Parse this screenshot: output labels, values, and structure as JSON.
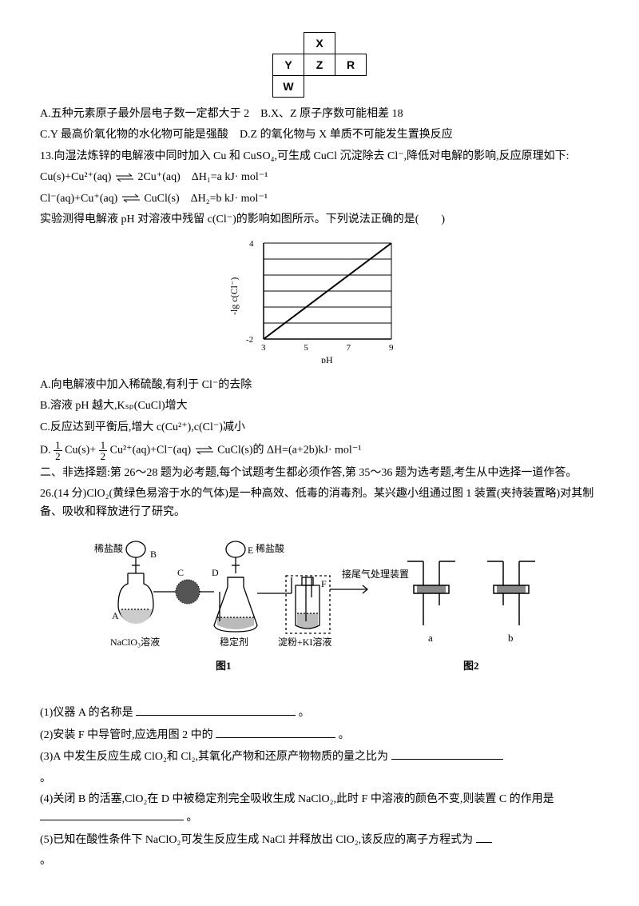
{
  "periodic": {
    "cells": {
      "X": "X",
      "Y": "Y",
      "Z": "Z",
      "R": "R",
      "W": "W"
    }
  },
  "q12": {
    "A": "A.五种元素原子最外层电子数一定都大于 2",
    "B": "B.X、Z 原子序数可能相差 18",
    "C": "C.Y 最高价氧化物的水化物可能是强酸",
    "D": "D.Z 的氧化物与 X 单质不可能发生置换反应"
  },
  "q13": {
    "intro": "13.向湿法炼锌的电解液中同时加入 Cu 和 CuSO₄,可生成 CuCl 沉淀除去 Cl⁻,降低对电解的影响,反应原理如下:",
    "eq1_left": "Cu(s)+Cu²⁺(aq)",
    "eq1_right": "2Cu⁺(aq)",
    "eq1_dH": "ΔH₁=a kJ· mol⁻¹",
    "eq2_left": "Cl⁻(aq)+Cu⁺(aq)",
    "eq2_right": "CuCl(s)",
    "eq2_dH": "ΔH₂=b kJ· mol⁻¹",
    "note": "实验测得电解液 pH 对溶液中残留 c(Cl⁻)的影响如图所示。下列说法正确的是(　　)",
    "A": "A.向电解液中加入稀硫酸,有利于 Cl⁻的去除",
    "B": "B.溶液 pH 越大,Kₛₚ(CuCl)增大",
    "C": "C.反应达到平衡后,增大 c(Cu²⁺),c(Cl⁻)减小",
    "D_prefix": "D.",
    "D_mid1": "Cu(s)+",
    "D_mid2": "Cu²⁺(aq)+Cl⁻(aq)",
    "D_right": "CuCl(s)的 ΔH=(a+2b)kJ· mol⁻¹"
  },
  "graph": {
    "xlabel": "pH",
    "ylabel": "-lg c(Cl⁻)",
    "xlim": [
      3,
      9
    ],
    "ylim": [
      -2,
      4
    ],
    "xticks": [
      3,
      5,
      7,
      9
    ],
    "yticks": [
      -2,
      4
    ],
    "grid_ylines": [
      -2,
      -1,
      0,
      1,
      2,
      3,
      4
    ],
    "line": {
      "x1": 3,
      "y1": -2,
      "x2": 9,
      "y2": 4
    },
    "stroke": "#000000",
    "grid": "#000000",
    "bg": "#ffffff"
  },
  "section2": "二、非选择题:第 26～28 题为必考题,每个试题考生都必须作答,第 35～36 题为选考题,考生从中选择一道作答。",
  "q26": {
    "intro": "26.(14 分)ClO₂(黄绿色易溶于水的气体)是一种高效、低毒的消毒剂。某兴趣小组通过图 1 装置(夹持装置略)对其制备、吸收和释放进行了研究。",
    "labels": {
      "dilute_hcl1": "稀盐酸",
      "dilute_hcl2": "稀盐酸",
      "tail_gas": "接尾气处理装置",
      "A": "A",
      "B": "B",
      "C": "C",
      "D": "D",
      "E": "E",
      "F": "F",
      "naclo3": "NaClO₃溶液",
      "stabilizer": "稳定剂",
      "starch_ki": "淀粉+KI溶液",
      "fig1": "图1",
      "fig2": "图2",
      "a": "a",
      "b": "b"
    },
    "sub1": "(1)仪器 A 的名称是",
    "sub1_end": "。",
    "sub2": "(2)安装 F 中导管时,应选用图 2 中的",
    "sub2_end": "。",
    "sub3": "(3)A 中发生反应生成 ClO₂和 Cl₂,其氧化产物和还原产物物质的量之比为",
    "sub4": "(4)关闭 B 的活塞,ClO₂在 D 中被稳定剂完全吸收生成 NaClO₂,此时 F 中溶液的颜色不变,则装置 C 的作用是",
    "sub4_end": "。",
    "sub5": "(5)已知在酸性条件下 NaClO₂可发生反应生成 NaCl 并释放出 ClO₂,该反应的离子方程式为",
    "end_punct": "。"
  },
  "colors": {
    "text": "#000000"
  }
}
